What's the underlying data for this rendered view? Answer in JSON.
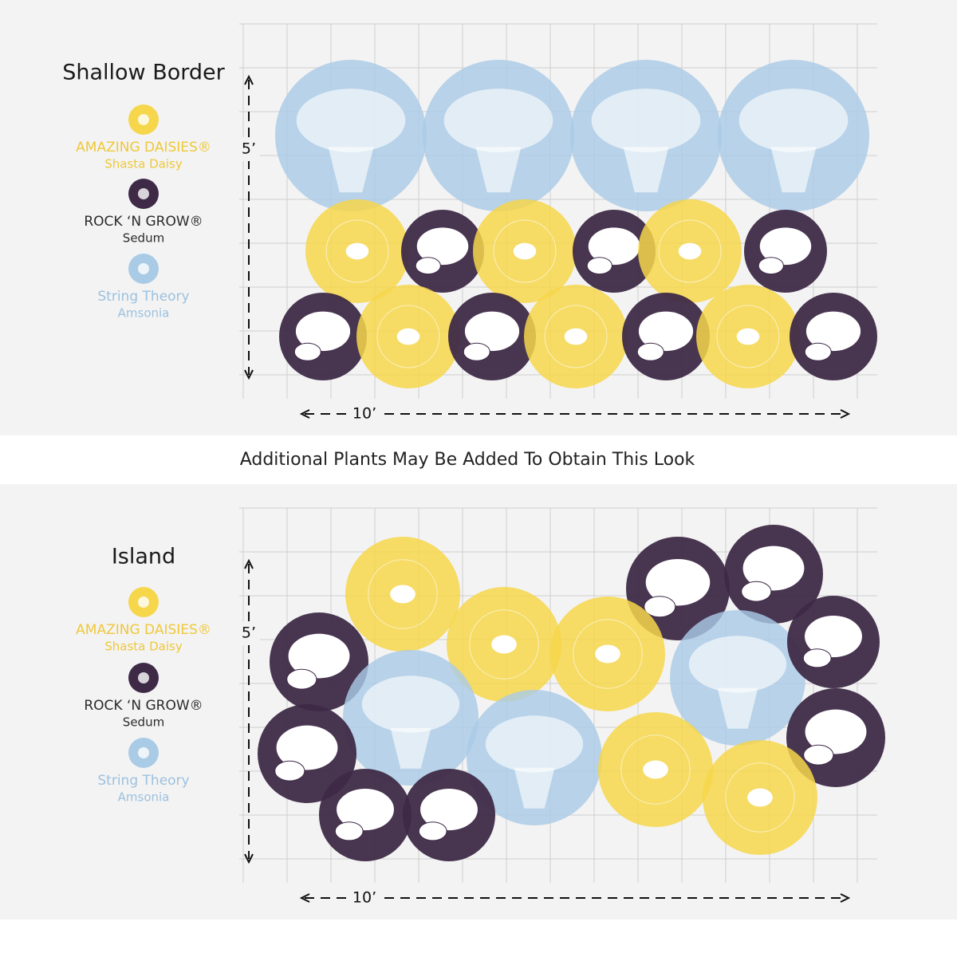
{
  "panels": [
    {
      "title": "Shallow Border",
      "legend": [
        {
          "name": "AMAZING DAISIES®",
          "sub": "Shasta Daisy"
        },
        {
          "name": "ROCK ‘N GROW®",
          "sub": "Sedum"
        },
        {
          "name": "String Theory",
          "sub": "Amsonia"
        }
      ],
      "height_label": "5’",
      "width_label": "10’"
    },
    {
      "title": "Island",
      "legend": [
        {
          "name": "AMAZING DAISIES®",
          "sub": "Shasta Daisy"
        },
        {
          "name": "ROCK ‘N GROW®",
          "sub": "Sedum"
        },
        {
          "name": "String Theory",
          "sub": "Amsonia"
        }
      ],
      "height_label": "5’",
      "width_label": "10’"
    }
  ],
  "banner": "Additional Plants May Be Added To Obtain This Look"
}
